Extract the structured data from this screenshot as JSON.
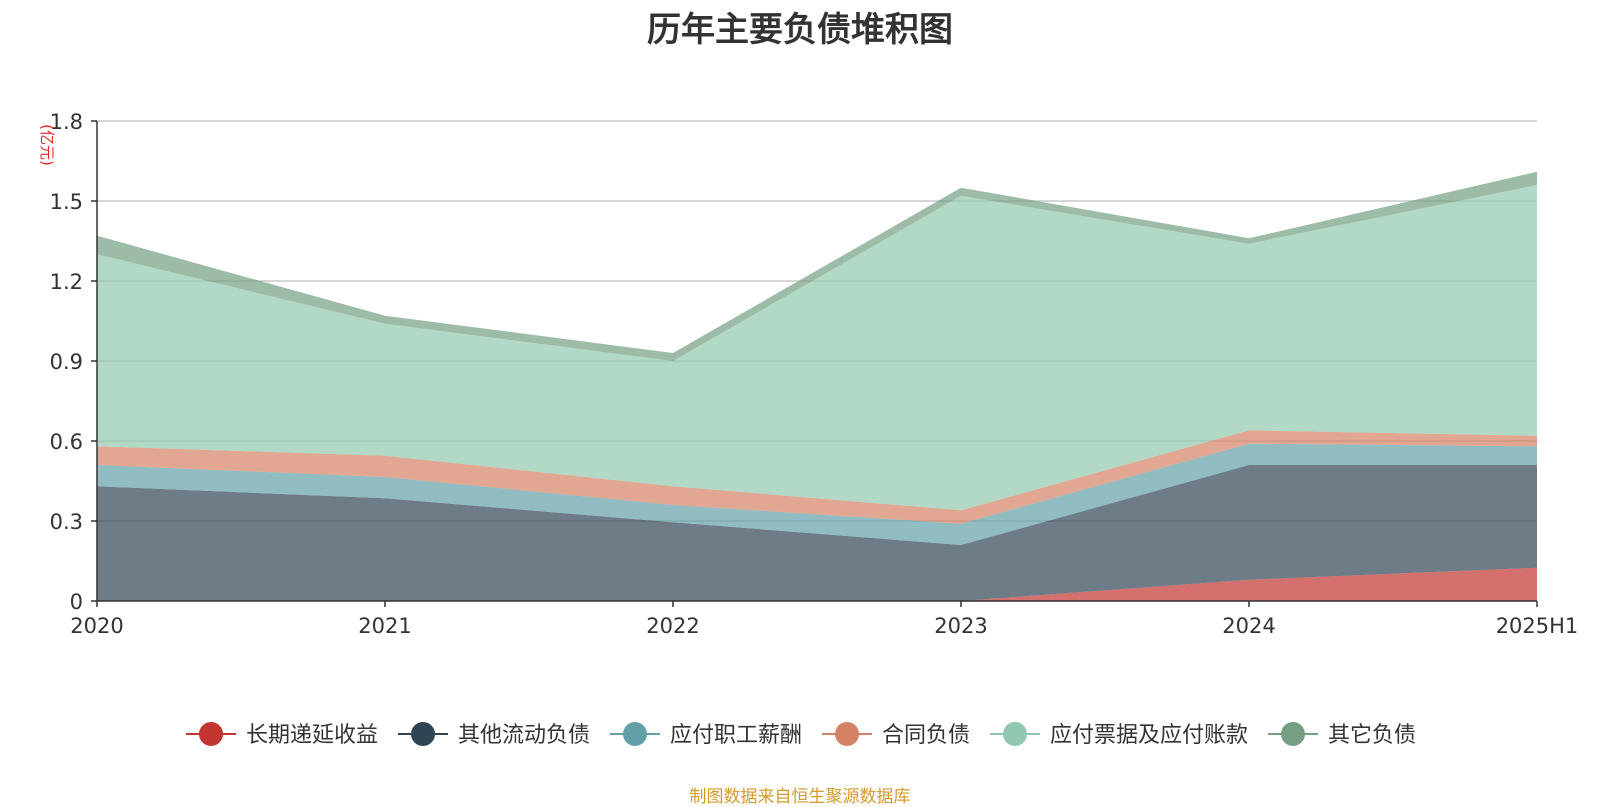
{
  "chart_data": {
    "type": "area",
    "title": "历年主要负债堆积图",
    "unit_label": "(亿元)",
    "source_note": "制图数据来自恒生聚源数据库",
    "categories": [
      "2020",
      "2021",
      "2022",
      "2023",
      "2024",
      "2025H1"
    ],
    "ylim": [
      0,
      1.8
    ],
    "yticks": [
      "0",
      "0.3",
      "0.6",
      "0.9",
      "1.2",
      "1.5",
      "1.8"
    ],
    "stacked": true,
    "grid": true,
    "legend_position": "bottom",
    "series": [
      {
        "name": "长期递延收益",
        "color": "#c23531",
        "values": [
          0,
          0,
          0,
          0,
          0.08,
          0.125
        ]
      },
      {
        "name": "其他流动负债",
        "color": "#2f4554",
        "values": [
          0.43,
          0.385,
          0.295,
          0.21,
          0.43,
          0.385
        ]
      },
      {
        "name": "应付职工薪酬",
        "color": "#61a0a8",
        "values": [
          0.08,
          0.08,
          0.065,
          0.08,
          0.08,
          0.07
        ]
      },
      {
        "name": "合同负债",
        "color": "#d48265",
        "values": [
          0.07,
          0.08,
          0.07,
          0.05,
          0.05,
          0.04
        ]
      },
      {
        "name": "应付票据及应付账款",
        "color": "#91c7ae",
        "values": [
          0.72,
          0.495,
          0.47,
          1.18,
          0.7,
          0.94
        ]
      },
      {
        "name": "其它负债",
        "color": "#749f83",
        "values": [
          0.07,
          0.03,
          0.03,
          0.03,
          0.02,
          0.05
        ]
      }
    ]
  }
}
